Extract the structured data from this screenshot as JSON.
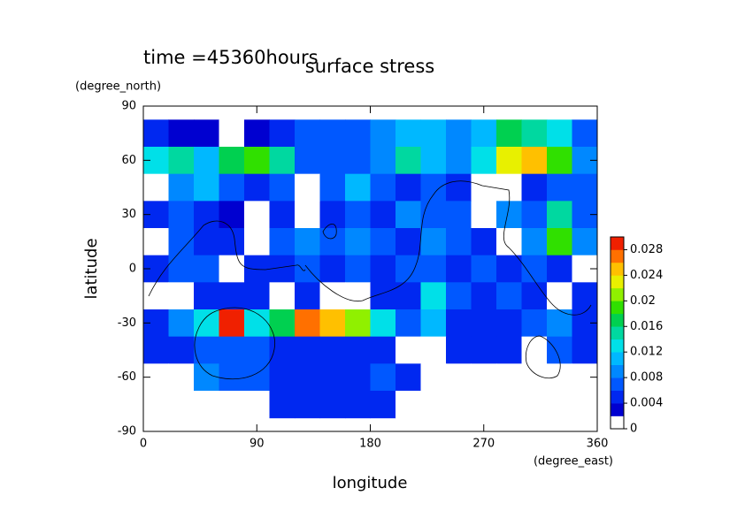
{
  "chart_data": {
    "type": "contour",
    "title": "surface stress",
    "subtitle": "time =45360hours",
    "x_label": "longitude",
    "x_unit": "(degree_east)",
    "y_label": "latitude",
    "y_unit": "(degree_north)",
    "xlim": [
      0,
      360
    ],
    "ylim": [
      -90,
      90
    ],
    "xticks": [
      0,
      90,
      180,
      270,
      360
    ],
    "yticks": [
      90,
      60,
      30,
      0,
      -30,
      -60,
      -90
    ],
    "x": [
      10,
      30,
      50,
      70,
      90,
      110,
      130,
      150,
      170,
      190,
      210,
      230,
      250,
      270,
      290,
      310,
      330,
      350
    ],
    "y": [
      75,
      60,
      45,
      30,
      15,
      0,
      -15,
      -30,
      -45,
      -60,
      -75
    ],
    "z": [
      [
        0.004,
        0.003,
        0.002,
        0.001,
        0.002,
        0.004,
        0.006,
        0.006,
        0.006,
        0.008,
        0.01,
        0.01,
        0.008,
        0.01,
        0.016,
        0.014,
        0.012,
        0.006
      ],
      [
        0.012,
        0.014,
        0.01,
        0.016,
        0.018,
        0.014,
        0.006,
        0.006,
        0.006,
        0.008,
        0.014,
        0.01,
        0.008,
        0.012,
        0.022,
        0.024,
        0.018,
        0.008
      ],
      [
        0.001,
        0.008,
        0.01,
        0.006,
        0.004,
        0.006,
        0.001,
        0.006,
        0.01,
        0.006,
        0.004,
        0.006,
        0.004,
        0.001,
        0.001,
        0.004,
        0.006,
        0.006
      ],
      [
        0.004,
        0.006,
        0.004,
        0.002,
        0.001,
        0.004,
        0.001,
        0.004,
        0.006,
        0.004,
        0.008,
        0.006,
        0.006,
        0.001,
        0.008,
        0.006,
        0.014,
        0.006
      ],
      [
        0.001,
        0.006,
        0.004,
        0.004,
        0.001,
        0.006,
        0.008,
        0.006,
        0.008,
        0.006,
        0.004,
        0.008,
        0.006,
        0.004,
        0.001,
        0.008,
        0.018,
        0.008
      ],
      [
        0.004,
        0.006,
        0.006,
        0.001,
        0.004,
        0.004,
        0.006,
        0.004,
        0.006,
        0.004,
        0.006,
        0.006,
        0.004,
        0.006,
        0.004,
        0.006,
        0.004,
        0.001
      ],
      [
        0.001,
        0.001,
        0.004,
        0.004,
        0.004,
        0.001,
        0.004,
        0.001,
        0.001,
        0.004,
        0.004,
        0.012,
        0.006,
        0.004,
        0.006,
        0.004,
        0.001,
        0.004
      ],
      [
        0.004,
        0.008,
        0.012,
        0.028,
        0.012,
        0.016,
        0.026,
        0.024,
        0.02,
        0.012,
        0.006,
        0.01,
        0.004,
        0.004,
        0.004,
        0.006,
        0.008,
        0.004
      ],
      [
        0.004,
        0.004,
        0.006,
        0.006,
        0.006,
        0.004,
        0.004,
        0.004,
        0.004,
        0.004,
        0.001,
        0.001,
        0.004,
        0.004,
        0.004,
        0.001,
        0.006,
        0.004
      ],
      [
        0.001,
        0.001,
        0.008,
        0.006,
        0.006,
        0.004,
        0.004,
        0.004,
        0.004,
        0.006,
        0.004,
        0.001,
        0.001,
        0.001,
        0.001,
        0.001,
        0.001,
        0.001
      ],
      [
        0,
        0,
        0,
        0,
        0,
        0.004,
        0.004,
        0.004,
        0.004,
        0.004,
        0,
        0,
        0,
        0,
        0,
        0,
        0,
        0
      ]
    ],
    "clim": [
      0,
      0.03
    ],
    "colorbar_ticks": [
      0,
      0.004,
      0.008,
      0.012,
      0.016,
      0.02,
      0.024,
      0.028
    ],
    "colors": [
      "#ffffff",
      "#0000d0",
      "#0028f0",
      "#0058ff",
      "#0088ff",
      "#00b8ff",
      "#00e0e8",
      "#00d8a0",
      "#00d050",
      "#30e000",
      "#90f000",
      "#e8f000",
      "#ffc000",
      "#ff7000",
      "#f02000"
    ]
  }
}
